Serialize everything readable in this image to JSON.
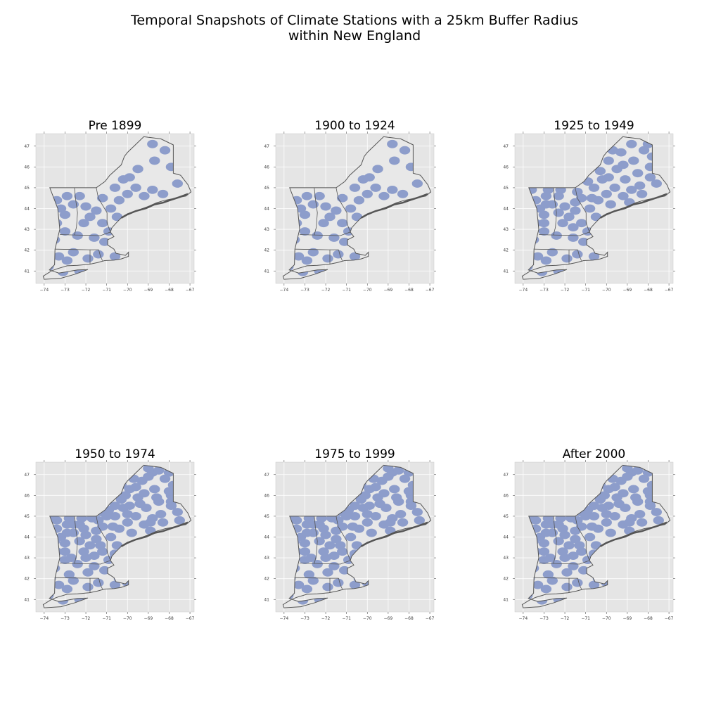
{
  "figure": {
    "title_line1": "Temporal Snapshots of Climate Stations with a 25km Buffer Radius",
    "title_line2": "within New England"
  },
  "style": {
    "panel_bg": "#e5e5e5",
    "grid": "#ffffff",
    "land_fill": "#e8e8e8",
    "coverage_fill": "#8d9dcb",
    "border": "#555555"
  },
  "chart_data": [
    {
      "type": "map",
      "title": "Pre 1899",
      "xticks": [
        -74,
        -73,
        -72,
        -71,
        -70,
        -69,
        -68,
        -67
      ],
      "yticks": [
        41,
        42,
        43,
        44,
        45,
        46,
        47
      ],
      "xlim": [
        -74.4,
        -66.8
      ],
      "ylim": [
        40.4,
        47.6
      ],
      "grid": true,
      "coverage": "low"
    },
    {
      "type": "map",
      "title": "1900 to 1924",
      "xticks": [
        -74,
        -73,
        -72,
        -71,
        -70,
        -69,
        -68,
        -67
      ],
      "yticks": [
        41,
        42,
        43,
        44,
        45,
        46,
        47
      ],
      "xlim": [
        -74.4,
        -66.8
      ],
      "ylim": [
        40.4,
        47.6
      ],
      "grid": true,
      "coverage": "low"
    },
    {
      "type": "map",
      "title": "1925 to 1949",
      "xticks": [
        -74,
        -73,
        -72,
        -71,
        -70,
        -69,
        -68,
        -67
      ],
      "yticks": [
        41,
        42,
        43,
        44,
        45,
        46,
        47
      ],
      "xlim": [
        -74.4,
        -66.8
      ],
      "ylim": [
        40.4,
        47.6
      ],
      "grid": true,
      "coverage": "medium"
    },
    {
      "type": "map",
      "title": "1950 to 1974",
      "xticks": [
        -74,
        -73,
        -72,
        -71,
        -70,
        -69,
        -68,
        -67
      ],
      "yticks": [
        41,
        42,
        43,
        44,
        45,
        46,
        47
      ],
      "xlim": [
        -74.4,
        -66.8
      ],
      "ylim": [
        40.4,
        47.6
      ],
      "grid": true,
      "coverage": "high"
    },
    {
      "type": "map",
      "title": "1975 to 1999",
      "xticks": [
        -74,
        -73,
        -72,
        -71,
        -70,
        -69,
        -68,
        -67
      ],
      "yticks": [
        41,
        42,
        43,
        44,
        45,
        46,
        47
      ],
      "xlim": [
        -74.4,
        -66.8
      ],
      "ylim": [
        40.4,
        47.6
      ],
      "grid": true,
      "coverage": "high"
    },
    {
      "type": "map",
      "title": "After 2000",
      "xticks": [
        -74,
        -73,
        -72,
        -71,
        -70,
        -69,
        -68,
        -67
      ],
      "yticks": [
        41,
        42,
        43,
        44,
        45,
        46,
        47
      ],
      "xlim": [
        -74.4,
        -66.8
      ],
      "ylim": [
        40.4,
        47.6
      ],
      "grid": true,
      "coverage": "high"
    }
  ]
}
